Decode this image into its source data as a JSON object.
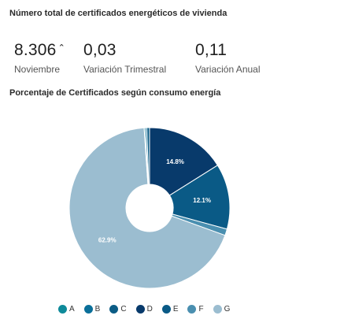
{
  "header": {
    "title": "Número total de certificados energéticos de vivienda"
  },
  "kpis": [
    {
      "value": "8.306",
      "trend": "⌃",
      "label": "Noviembre"
    },
    {
      "value": "0,03",
      "label": "Variación Trimestral"
    },
    {
      "value": "0,11",
      "label": "Variación Anual"
    }
  ],
  "chart_title": "Porcentaje de Certificados según consumo energía",
  "colors": {
    "A": "#0e8a9a",
    "B": "#0a6f99",
    "C": "#0b5c85",
    "D": "#083a6b",
    "E": "#0a5a86",
    "F": "#4a8fb0",
    "G": "#9bbdd0"
  },
  "chart_data": {
    "type": "pie",
    "donut": true,
    "title": "Porcentaje de Certificados según consumo energía",
    "slices": [
      {
        "name": "D",
        "value": 14.8,
        "label": "14.8%"
      },
      {
        "name": "E",
        "value": 12.1,
        "label": "12.1%"
      },
      {
        "name": "F",
        "value": 1.2,
        "label": ""
      },
      {
        "name": "G",
        "value": 62.9,
        "label": "62.9%"
      },
      {
        "name": "A",
        "value": 0.2,
        "label": ""
      },
      {
        "name": "B",
        "value": 0.3,
        "label": ""
      },
      {
        "name": "C",
        "value": 0.5,
        "label": ""
      }
    ],
    "legend": [
      "A",
      "B",
      "C",
      "D",
      "E",
      "F",
      "G"
    ],
    "legend_position": "bottom"
  }
}
